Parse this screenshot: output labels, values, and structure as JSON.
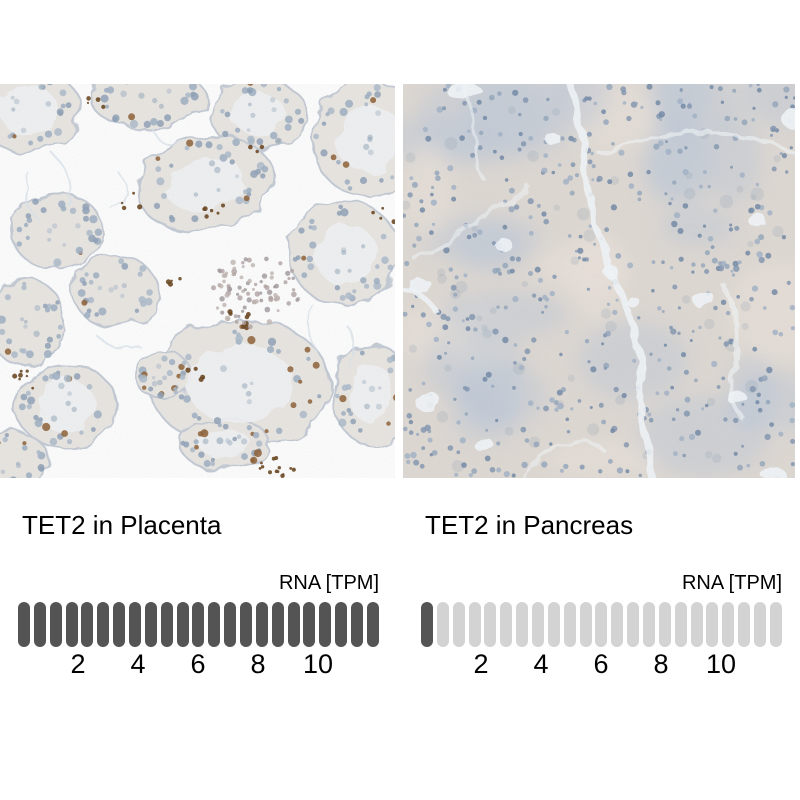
{
  "figure": {
    "panels": [
      {
        "id": "placenta",
        "title": "TET2 in Placenta",
        "tissue": "Placenta",
        "gene": "TET2",
        "rna_bar": {
          "label": "RNA [TPM]",
          "unit": "TPM",
          "total_segments": 23,
          "filled_segments": 23,
          "tick_values": [
            2,
            4,
            6,
            8,
            10
          ],
          "filled_color": "#545454",
          "empty_color": "#d3d3d3"
        },
        "stain_palette": {
          "background": "#fdfdfd",
          "tissue": "#e8e5e0",
          "tissue_edge": "#c2c9d3",
          "tissue_inner": "#f1f3f5",
          "strand": "#d7e1e9",
          "nucleus_blues": [
            "#9aacc0",
            "#8c9fb4",
            "#a9b8c8"
          ],
          "nucleus_brown": "#8a5a2e",
          "speckle_brown": "#66401a",
          "rbc_grays": [
            "#ae9f9e",
            "#bdb1ad",
            "#9b9297"
          ]
        }
      },
      {
        "id": "pancreas",
        "title": "TET2 in Pancreas",
        "tissue": "Pancreas",
        "gene": "TET2",
        "rna_bar": {
          "label": "RNA [TPM]",
          "unit": "TPM",
          "total_segments": 23,
          "filled_segments": 1,
          "tick_values": [
            2,
            4,
            6,
            8,
            10
          ],
          "filled_color": "#545454",
          "empty_color": "#d3d3d3"
        },
        "stain_palette": {
          "background": "#ded8d2",
          "mottle_blue": "#bcc8d6",
          "mottle_warm": "#e9e1d8",
          "cleft": "#f2f6fa",
          "nucleus_blues": [
            "#7e93ad",
            "#90a3ba",
            "#6b84a2",
            "#9fb0c4"
          ]
        }
      }
    ]
  }
}
